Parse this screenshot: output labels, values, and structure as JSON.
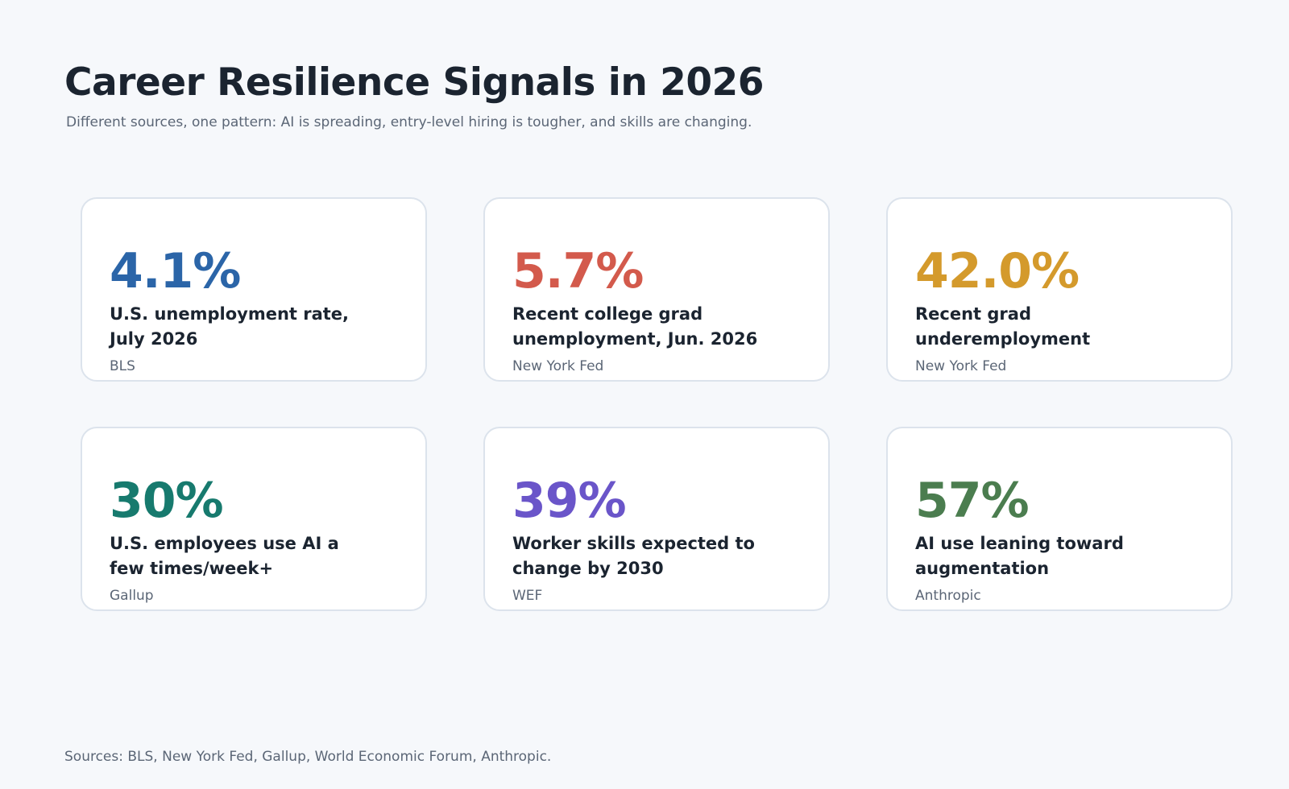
{
  "header": {
    "title": "Career Resilience Signals in 2026",
    "subtitle": "Different sources, one pattern: AI is spreading, entry-level hiring is tougher, and skills are changing."
  },
  "cards": [
    {
      "value": "4.1%",
      "label": "U.S. unemployment rate, July 2026",
      "source": "BLS",
      "color": "#2b65a8"
    },
    {
      "value": "5.7%",
      "label": "Recent college grad unemployment, Jun. 2026",
      "source": "New York Fed",
      "color": "#d35a4c"
    },
    {
      "value": "42.0%",
      "label": "Recent grad underemployment",
      "source": "New York Fed",
      "color": "#d49a2c"
    },
    {
      "value": "30%",
      "label": "U.S. employees use AI a few times/week+",
      "source": "Gallup",
      "color": "#177a6e"
    },
    {
      "value": "39%",
      "label": "Worker skills expected to change by 2030",
      "source": "WEF",
      "color": "#6a55c9"
    },
    {
      "value": "57%",
      "label": "AI use leaning toward augmentation",
      "source": "Anthropic",
      "color": "#4b7d4f"
    }
  ],
  "footer": {
    "sources": "Sources: BLS, New York Fed, Gallup, World Economic Forum, Anthropic."
  }
}
